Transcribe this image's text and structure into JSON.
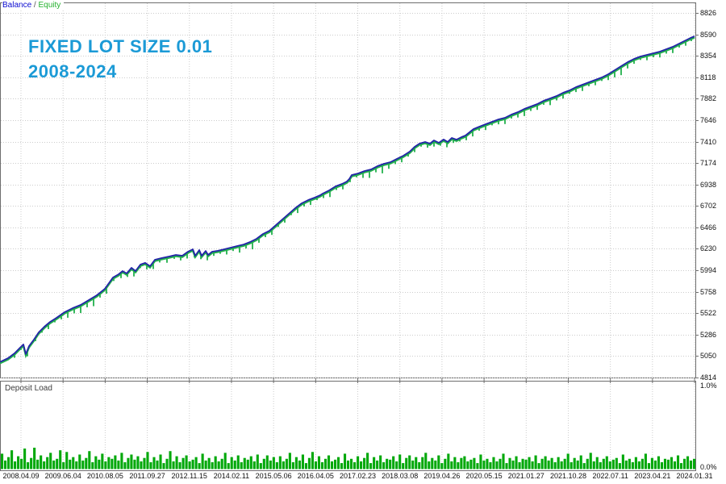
{
  "legend": {
    "balance": "Balance",
    "separator": " / ",
    "equity": "Equity"
  },
  "watermark": {
    "line1": "FIXED LOT SIZE 0.01",
    "line2": "2008-2024"
  },
  "colors": {
    "balance_line": "#2424a8",
    "equity_line": "#22b14c",
    "deposit_bars": "#00a80a",
    "watermark": "#1b9ad6",
    "grid": "#cccccc",
    "frame": "#6e6e6e",
    "legend_balance": "#0b0bd0",
    "legend_equity": "#23b12c"
  },
  "sub_panel": {
    "label": "Deposit Load",
    "top_tick": "1.0%",
    "bottom_tick": "0.0%"
  },
  "chart_data": {
    "type": "line",
    "title": "FIXED LOT SIZE 0.01 2008-2024",
    "legend_entries": [
      "Balance",
      "Equity"
    ],
    "ylim": [
      4814,
      8826
    ],
    "grid": "dotted",
    "y_ticks": [
      8826,
      8590,
      8354,
      8118,
      7882,
      7646,
      7410,
      7174,
      6938,
      6702,
      6466,
      6230,
      5994,
      5758,
      5522,
      5286,
      5050,
      4814
    ],
    "x_tick_labels": [
      "2008.04.09",
      "2009.06.04",
      "2010.08.05",
      "2011.09.27",
      "2012.11.15",
      "2014.02.11",
      "2015.05.06",
      "2016.04.05",
      "2017.02.23",
      "2018.03.08",
      "2019.04.26",
      "2020.05.15",
      "2021.01.27",
      "2021.10.28",
      "2022.07.11",
      "2023.04.21",
      "2024.01.31"
    ],
    "series": [
      {
        "name": "Balance",
        "x_unit": "px across 2008-2024 timeline, plot width 862",
        "points": [
          [
            0,
            4985
          ],
          [
            10,
            5027
          ],
          [
            18,
            5080
          ],
          [
            25,
            5143
          ],
          [
            29,
            5178
          ],
          [
            32,
            5072
          ],
          [
            36,
            5160
          ],
          [
            42,
            5231
          ],
          [
            48,
            5311
          ],
          [
            55,
            5373
          ],
          [
            62,
            5426
          ],
          [
            70,
            5471
          ],
          [
            80,
            5533
          ],
          [
            90,
            5577
          ],
          [
            100,
            5613
          ],
          [
            110,
            5666
          ],
          [
            120,
            5719
          ],
          [
            130,
            5790
          ],
          [
            140,
            5915
          ],
          [
            147,
            5950
          ],
          [
            152,
            5986
          ],
          [
            157,
            5959
          ],
          [
            163,
            6021
          ],
          [
            168,
            5986
          ],
          [
            174,
            6057
          ],
          [
            180,
            6075
          ],
          [
            186,
            6039
          ],
          [
            192,
            6110
          ],
          [
            200,
            6128
          ],
          [
            210,
            6146
          ],
          [
            218,
            6163
          ],
          [
            226,
            6154
          ],
          [
            233,
            6199
          ],
          [
            239,
            6225
          ],
          [
            242,
            6154
          ],
          [
            247,
            6216
          ],
          [
            250,
            6154
          ],
          [
            255,
            6207
          ],
          [
            258,
            6163
          ],
          [
            263,
            6199
          ],
          [
            270,
            6208
          ],
          [
            278,
            6225
          ],
          [
            286,
            6243
          ],
          [
            294,
            6261
          ],
          [
            302,
            6278
          ],
          [
            310,
            6305
          ],
          [
            318,
            6341
          ],
          [
            326,
            6394
          ],
          [
            334,
            6429
          ],
          [
            342,
            6491
          ],
          [
            350,
            6554
          ],
          [
            358,
            6616
          ],
          [
            366,
            6678
          ],
          [
            374,
            6731
          ],
          [
            382,
            6767
          ],
          [
            390,
            6793
          ],
          [
            397,
            6820
          ],
          [
            400,
            6838
          ],
          [
            408,
            6873
          ],
          [
            416,
            6918
          ],
          [
            424,
            6944
          ],
          [
            430,
            6971
          ],
          [
            433,
            6998
          ],
          [
            436,
            7042
          ],
          [
            444,
            7060
          ],
          [
            452,
            7086
          ],
          [
            460,
            7104
          ],
          [
            468,
            7140
          ],
          [
            476,
            7166
          ],
          [
            484,
            7184
          ],
          [
            492,
            7220
          ],
          [
            500,
            7255
          ],
          [
            508,
            7300
          ],
          [
            514,
            7353
          ],
          [
            520,
            7388
          ],
          [
            527,
            7406
          ],
          [
            533,
            7388
          ],
          [
            538,
            7424
          ],
          [
            544,
            7397
          ],
          [
            550,
            7433
          ],
          [
            555,
            7406
          ],
          [
            560,
            7450
          ],
          [
            566,
            7432
          ],
          [
            572,
            7459
          ],
          [
            577,
            7477
          ],
          [
            582,
            7512
          ],
          [
            587,
            7548
          ],
          [
            594,
            7574
          ],
          [
            602,
            7601
          ],
          [
            610,
            7628
          ],
          [
            618,
            7654
          ],
          [
            626,
            7672
          ],
          [
            634,
            7708
          ],
          [
            642,
            7734
          ],
          [
            650,
            7770
          ],
          [
            658,
            7796
          ],
          [
            666,
            7823
          ],
          [
            674,
            7859
          ],
          [
            682,
            7885
          ],
          [
            690,
            7912
          ],
          [
            698,
            7947
          ],
          [
            706,
            7974
          ],
          [
            714,
            8009
          ],
          [
            722,
            8036
          ],
          [
            730,
            8063
          ],
          [
            738,
            8089
          ],
          [
            746,
            8116
          ],
          [
            754,
            8151
          ],
          [
            762,
            8196
          ],
          [
            770,
            8240
          ],
          [
            778,
            8284
          ],
          [
            786,
            8320
          ],
          [
            794,
            8347
          ],
          [
            802,
            8364
          ],
          [
            810,
            8382
          ],
          [
            818,
            8400
          ],
          [
            826,
            8427
          ],
          [
            834,
            8453
          ],
          [
            842,
            8489
          ],
          [
            850,
            8524
          ],
          [
            856,
            8551
          ],
          [
            861,
            8569
          ]
        ]
      },
      {
        "name": "Equity",
        "render": "tracks Balance with drawdown spikes below it",
        "spikes_x_depth": [
          [
            18,
            40
          ],
          [
            26,
            25
          ],
          [
            34,
            60
          ],
          [
            44,
            35
          ],
          [
            52,
            30
          ],
          [
            60,
            55
          ],
          [
            68,
            30
          ],
          [
            76,
            45
          ],
          [
            84,
            70
          ],
          [
            92,
            55
          ],
          [
            100,
            80
          ],
          [
            108,
            60
          ],
          [
            116,
            90
          ],
          [
            124,
            45
          ],
          [
            132,
            70
          ],
          [
            141,
            35
          ],
          [
            150,
            55
          ],
          [
            158,
            40
          ],
          [
            166,
            65
          ],
          [
            174,
            30
          ],
          [
            182,
            50
          ],
          [
            190,
            70
          ],
          [
            198,
            35
          ],
          [
            207,
            55
          ],
          [
            216,
            30
          ],
          [
            224,
            45
          ],
          [
            232,
            60
          ],
          [
            241,
            35
          ],
          [
            249,
            50
          ],
          [
            257,
            65
          ],
          [
            265,
            40
          ],
          [
            273,
            30
          ],
          [
            281,
            55
          ],
          [
            289,
            35
          ],
          [
            297,
            70
          ],
          [
            305,
            45
          ],
          [
            313,
            85
          ],
          [
            321,
            55
          ],
          [
            329,
            40
          ],
          [
            337,
            60
          ],
          [
            345,
            35
          ],
          [
            353,
            50
          ],
          [
            361,
            30
          ],
          [
            369,
            65
          ],
          [
            377,
            40
          ],
          [
            385,
            55
          ],
          [
            393,
            30
          ],
          [
            401,
            45
          ],
          [
            409,
            70
          ],
          [
            417,
            35
          ],
          [
            425,
            55
          ],
          [
            434,
            40
          ],
          [
            442,
            30
          ],
          [
            450,
            60
          ],
          [
            458,
            80
          ],
          [
            466,
            50
          ],
          [
            474,
            90
          ],
          [
            482,
            60
          ],
          [
            490,
            40
          ],
          [
            498,
            55
          ],
          [
            506,
            35
          ],
          [
            514,
            50
          ],
          [
            522,
            30
          ],
          [
            530,
            45
          ],
          [
            538,
            60
          ],
          [
            546,
            35
          ],
          [
            554,
            55
          ],
          [
            562,
            40
          ],
          [
            570,
            30
          ],
          [
            578,
            50
          ],
          [
            586,
            65
          ],
          [
            594,
            35
          ],
          [
            602,
            55
          ],
          [
            610,
            30
          ],
          [
            618,
            45
          ],
          [
            626,
            60
          ],
          [
            634,
            35
          ],
          [
            642,
            50
          ],
          [
            650,
            70
          ],
          [
            658,
            40
          ],
          [
            666,
            55
          ],
          [
            674,
            35
          ],
          [
            682,
            65
          ],
          [
            690,
            40
          ],
          [
            698,
            55
          ],
          [
            706,
            30
          ],
          [
            714,
            45
          ],
          [
            722,
            60
          ],
          [
            730,
            35
          ],
          [
            738,
            50
          ],
          [
            746,
            30
          ],
          [
            754,
            55
          ],
          [
            762,
            70
          ],
          [
            770,
            90
          ],
          [
            778,
            60
          ],
          [
            786,
            45
          ],
          [
            794,
            30
          ],
          [
            802,
            50
          ],
          [
            810,
            35
          ],
          [
            818,
            55
          ],
          [
            826,
            40
          ],
          [
            834,
            60
          ],
          [
            842,
            35
          ],
          [
            850,
            50
          ],
          [
            857,
            30
          ]
        ]
      }
    ],
    "sub_chart": {
      "type": "bar",
      "name": "Deposit Load",
      "ylim_pct": [
        0.0,
        1.0
      ],
      "y_tick_labels": [
        "1.0%",
        "0.0%"
      ],
      "values_pct": [
        0.18,
        0.1,
        0.14,
        0.22,
        0.09,
        0.15,
        0.12,
        0.24,
        0.08,
        0.13,
        0.25,
        0.11,
        0.16,
        0.09,
        0.14,
        0.19,
        0.1,
        0.12,
        0.22,
        0.08,
        0.2,
        0.11,
        0.14,
        0.09,
        0.17,
        0.1,
        0.13,
        0.21,
        0.08,
        0.15,
        0.11,
        0.18,
        0.09,
        0.14,
        0.12,
        0.16,
        0.1,
        0.19,
        0.08,
        0.13,
        0.17,
        0.11,
        0.15,
        0.09,
        0.13,
        0.2,
        0.08,
        0.14,
        0.1,
        0.17,
        0.07,
        0.12,
        0.21,
        0.09,
        0.15,
        0.08,
        0.13,
        0.16,
        0.09,
        0.11,
        0.14,
        0.07,
        0.18,
        0.1,
        0.13,
        0.08,
        0.15,
        0.09,
        0.12,
        0.19,
        0.07,
        0.14,
        0.1,
        0.16,
        0.08,
        0.13,
        0.11,
        0.15,
        0.09,
        0.17,
        0.07,
        0.12,
        0.16,
        0.1,
        0.14,
        0.08,
        0.15,
        0.09,
        0.12,
        0.19,
        0.08,
        0.14,
        0.1,
        0.17,
        0.07,
        0.13,
        0.2,
        0.09,
        0.15,
        0.08,
        0.12,
        0.16,
        0.09,
        0.11,
        0.14,
        0.07,
        0.18,
        0.1,
        0.12,
        0.08,
        0.15,
        0.09,
        0.13,
        0.19,
        0.07,
        0.14,
        0.1,
        0.16,
        0.08,
        0.12,
        0.11,
        0.15,
        0.09,
        0.17,
        0.07,
        0.13,
        0.16,
        0.1,
        0.14,
        0.08,
        0.14,
        0.19,
        0.09,
        0.13,
        0.1,
        0.16,
        0.07,
        0.12,
        0.18,
        0.09,
        0.14,
        0.08,
        0.13,
        0.15,
        0.09,
        0.11,
        0.13,
        0.07,
        0.17,
        0.1,
        0.12,
        0.08,
        0.14,
        0.09,
        0.12,
        0.18,
        0.07,
        0.13,
        0.1,
        0.15,
        0.08,
        0.12,
        0.11,
        0.14,
        0.09,
        0.16,
        0.07,
        0.12,
        0.15,
        0.1,
        0.13,
        0.08,
        0.14,
        0.09,
        0.12,
        0.18,
        0.08,
        0.13,
        0.1,
        0.16,
        0.07,
        0.12,
        0.19,
        0.09,
        0.14,
        0.08,
        0.12,
        0.15,
        0.09,
        0.11,
        0.13,
        0.07,
        0.17,
        0.1,
        0.12,
        0.08,
        0.14,
        0.09,
        0.12,
        0.18,
        0.07,
        0.13,
        0.1,
        0.15,
        0.08,
        0.12,
        0.11,
        0.14,
        0.09,
        0.16,
        0.07,
        0.12,
        0.15,
        0.1,
        0.12
      ]
    }
  }
}
